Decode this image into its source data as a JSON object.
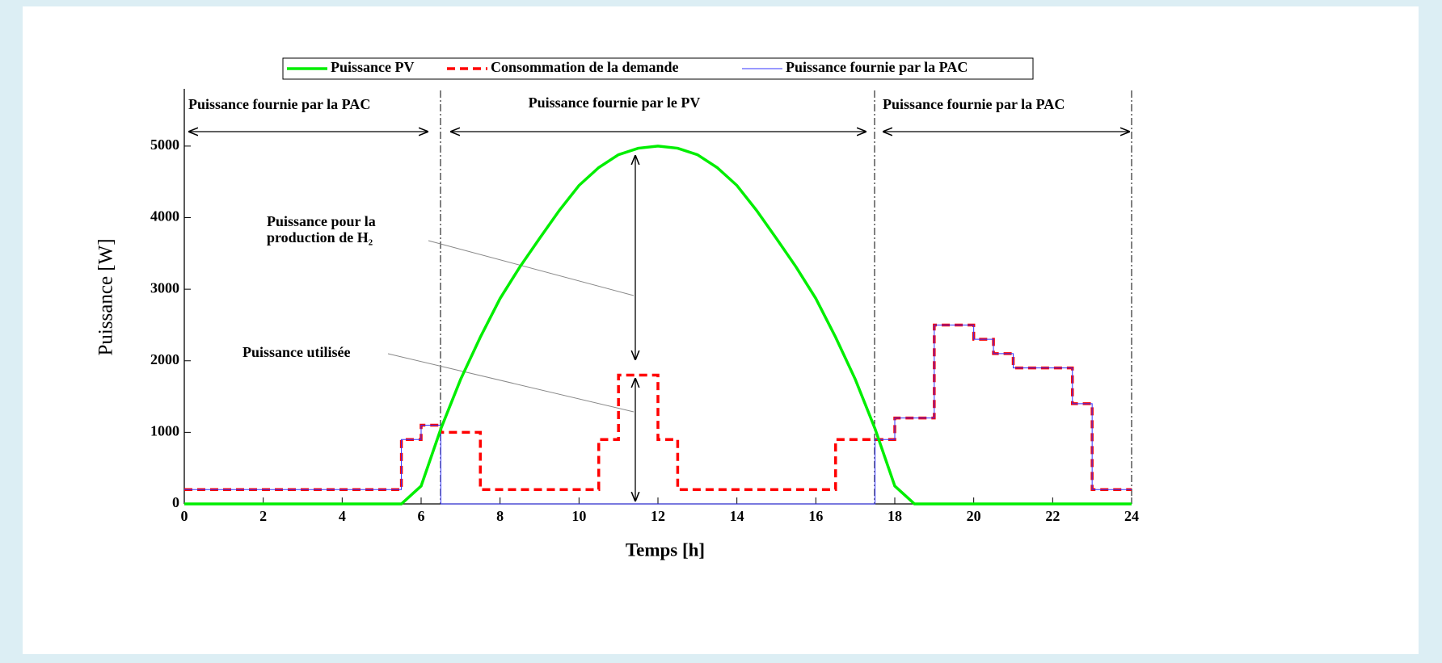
{
  "chart_data": {
    "type": "line",
    "xlabel": "Temps [h]",
    "ylabel": "Puissance [W]",
    "xlim": [
      0,
      24
    ],
    "ylim": [
      0,
      5800
    ],
    "xticks": [
      0,
      2,
      4,
      6,
      8,
      10,
      12,
      14,
      16,
      18,
      20,
      22,
      24
    ],
    "yticks": [
      0,
      1000,
      2000,
      3000,
      4000,
      5000
    ],
    "x": [
      0,
      0.5,
      1,
      1.5,
      2,
      2.5,
      3,
      3.5,
      4,
      4.5,
      5,
      5.5,
      6,
      6.5,
      7,
      7.5,
      8,
      8.5,
      9,
      9.5,
      10,
      10.5,
      11,
      11.5,
      12,
      12.5,
      13,
      13.5,
      14,
      14.5,
      15,
      15.5,
      16,
      16.5,
      17,
      17.5,
      18,
      18.5,
      19,
      19.5,
      20,
      20.5,
      21,
      21.5,
      22,
      22.5,
      23,
      23.5,
      24
    ],
    "series": [
      {
        "name": "Puissance PV",
        "color": "#00ee00",
        "style": "solid",
        "drawstyle": "line",
        "values": [
          0,
          0,
          0,
          0,
          0,
          0,
          0,
          0,
          0,
          0,
          0,
          0,
          250,
          1050,
          1740,
          2330,
          2870,
          3310,
          3710,
          4100,
          4450,
          4700,
          4880,
          4970,
          5000,
          4970,
          4880,
          4700,
          4450,
          4100,
          3710,
          3310,
          2870,
          2330,
          1740,
          1050,
          250,
          0,
          0,
          0,
          0,
          0,
          0,
          0,
          0,
          0,
          0,
          0,
          0
        ]
      },
      {
        "name": "Consommation de la demande",
        "color": "#ff0000",
        "style": "dashed",
        "drawstyle": "steps-post",
        "values": [
          200,
          200,
          200,
          200,
          200,
          200,
          200,
          200,
          200,
          200,
          200,
          900,
          1100,
          1000,
          1000,
          200,
          200,
          200,
          200,
          200,
          200,
          900,
          1800,
          1800,
          900,
          200,
          200,
          200,
          200,
          200,
          200,
          200,
          200,
          900,
          900,
          900,
          1200,
          1200,
          2500,
          2500,
          2300,
          2100,
          1900,
          1900,
          1900,
          1400,
          200,
          200,
          200
        ]
      },
      {
        "name": "Puissance fournie par la PAC",
        "color": "#3333ff",
        "style": "thin",
        "drawstyle": "steps-post",
        "values": [
          200,
          200,
          200,
          200,
          200,
          200,
          200,
          200,
          200,
          200,
          200,
          900,
          1100,
          0,
          0,
          0,
          0,
          0,
          0,
          0,
          0,
          0,
          0,
          0,
          0,
          0,
          0,
          0,
          0,
          0,
          0,
          0,
          0,
          0,
          0,
          900,
          1200,
          1200,
          2500,
          2500,
          2300,
          2100,
          1900,
          1900,
          1900,
          1400,
          200,
          200,
          200
        ]
      }
    ],
    "annotations": {
      "region_left": "Puissance fournie par la PAC",
      "region_middle": "Puissance fournie par le PV",
      "region_right": "Puissance fournie par la PAC",
      "h2_power": [
        "Puissance pour la",
        "production de H₂"
      ],
      "used_power": "Puissance utilisée"
    }
  }
}
